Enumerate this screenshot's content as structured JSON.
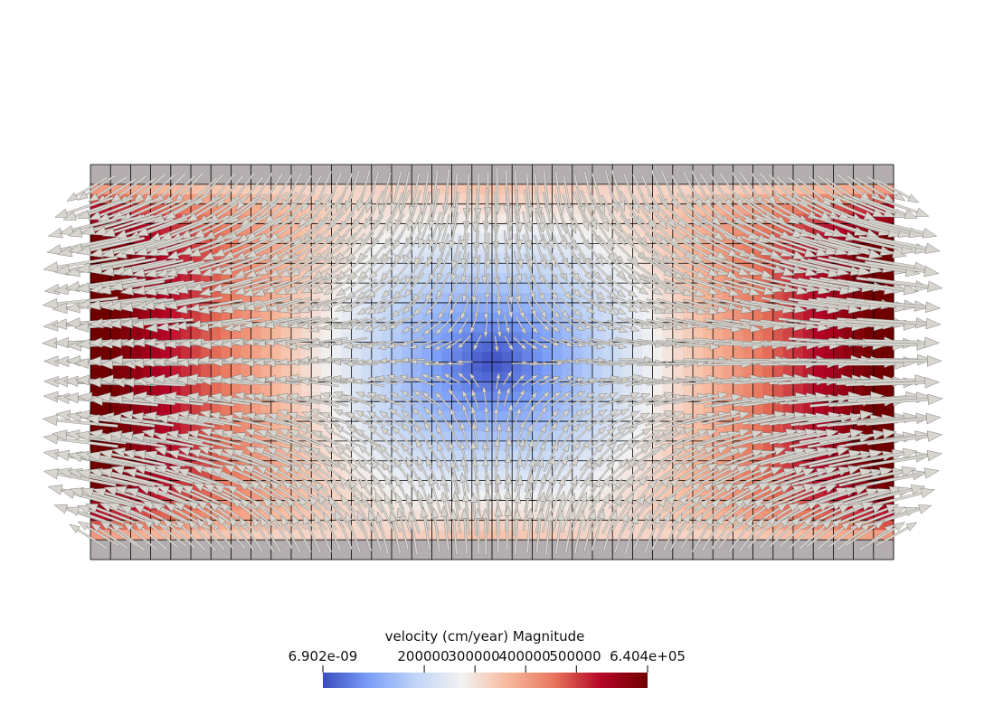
{
  "colorbar": {
    "title": "velocity (cm/year) Magnitude",
    "min_label": "6.902e-09",
    "max_label": "6.404e+05",
    "min_value": 6.902e-09,
    "max_value": 640400,
    "ticks": [
      {
        "label": "200000",
        "value": 200000
      },
      {
        "label": "300000",
        "value": 300000
      },
      {
        "label": "400000",
        "value": 400000
      },
      {
        "label": "500000",
        "value": 500000
      }
    ],
    "colormap": [
      "#3b4cc0",
      "#7b9ff9",
      "#c0d4f5",
      "#f2f2f2",
      "#f7b89c",
      "#e7745b",
      "#b40426",
      "#700000"
    ]
  },
  "mesh": {
    "columns": 40,
    "rows": 20,
    "cell_boundary_color": "#000000",
    "background_color": "#b4aeb0"
  },
  "glyphs": {
    "type": "arrow",
    "color": "#d8d5cf",
    "stroke_color": "#6a6a6a"
  }
}
